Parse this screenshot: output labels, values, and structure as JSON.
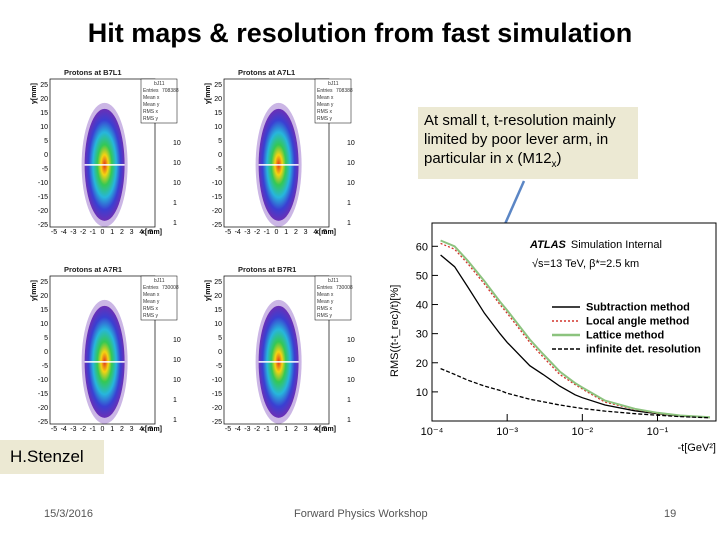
{
  "title": "Hit maps & resolution from fast simulation",
  "callout": {
    "text": "At small t, t-resolution mainly limited by poor lever arm, in particular in x (M12",
    "subscript": "x",
    "close": ")"
  },
  "author": "H.Stenzel",
  "footer": {
    "date": "15/3/2016",
    "event": "Forward Physics Workshop",
    "page": "19"
  },
  "hitmaps": [
    {
      "title": "Protons at B7L1",
      "stat_name": "bJ11",
      "entries": "708388",
      "xlabel": "x[mm]",
      "ylabel": "y[mm]"
    },
    {
      "title": "Protons at A7L1",
      "stat_name": "bJ11",
      "entries": "708388",
      "xlabel": "x[mm]",
      "ylabel": "y[mm]"
    },
    {
      "title": "Protons at A7R1",
      "stat_name": "bJ11",
      "entries": "730008",
      "xlabel": "x[mm]",
      "ylabel": "y[mm]"
    },
    {
      "title": "Protons at B7R1",
      "stat_name": "bJ11",
      "entries": "730008",
      "xlabel": "x[mm]",
      "ylabel": "y[mm]"
    }
  ],
  "hitmap_axes": {
    "x_ticks": [
      "-5",
      "-4",
      "-3",
      "-2",
      "-1",
      "0",
      "1",
      "2",
      "3",
      "4",
      "5"
    ],
    "y_ticks": [
      "25",
      "20",
      "15",
      "10",
      "5",
      "0",
      "-5",
      "-10",
      "-15",
      "-20",
      "-25"
    ],
    "z_ticks": [
      "10",
      "10",
      "10",
      "1",
      "1"
    ]
  },
  "stat_labels": [
    "Entries",
    "Mean x",
    "Mean y",
    "RMS x",
    "RMS y"
  ],
  "colors": {
    "callout_bg": "#ece9d3",
    "subtraction": "#000000",
    "local_angle": "#d2342c",
    "lattice": "#8cc37e",
    "infinite": "#000000",
    "arrow": "#5b86c5"
  },
  "chart_data": {
    "type": "line",
    "title": "ATLAS Simulation Internal",
    "title_bold": "ATLAS",
    "title_italic": "Simulation Internal",
    "subtitle": "√s=13 TeV, β*=2.5 km",
    "ylabel": "RMS((t-t_rec)/t)[%]",
    "xlabel": "-t[GeV²]",
    "xscale": "log",
    "xlim": [
      0.0001,
      0.6
    ],
    "ylim": [
      0,
      68
    ],
    "x_tick_labels": [
      "10⁻⁴",
      "10⁻³",
      "10⁻²",
      "10⁻¹"
    ],
    "x_tick_values": [
      0.0001,
      0.001,
      0.01,
      0.1
    ],
    "y_tick_labels": [
      "10",
      "20",
      "30",
      "40",
      "50",
      "60"
    ],
    "y_tick_values": [
      10,
      20,
      30,
      40,
      50,
      60
    ],
    "legend_position": "right",
    "series": [
      {
        "name": "Subtraction method",
        "style": "solid",
        "color": "#000000",
        "x": [
          0.00013,
          0.0002,
          0.0003,
          0.0005,
          0.0008,
          0.001,
          0.002,
          0.003,
          0.005,
          0.008,
          0.01,
          0.02,
          0.05,
          0.1,
          0.2,
          0.5
        ],
        "y": [
          57,
          53,
          46,
          37,
          30,
          27,
          19,
          16,
          12,
          9,
          8,
          5.5,
          3.5,
          2.5,
          1.7,
          1.2
        ]
      },
      {
        "name": "Local angle method",
        "style": "dotted",
        "color": "#d2342c",
        "x": [
          0.00013,
          0.0002,
          0.0003,
          0.0005,
          0.0008,
          0.001,
          0.002,
          0.003,
          0.005,
          0.008,
          0.01,
          0.02,
          0.05,
          0.1,
          0.2,
          0.5
        ],
        "y": [
          61,
          59,
          54,
          47,
          40,
          37,
          27,
          22,
          16,
          12.5,
          11,
          6.5,
          4,
          2.6,
          1.8,
          1.2
        ]
      },
      {
        "name": "Lattice method",
        "style": "solid",
        "color": "#8cc37e",
        "x": [
          0.00013,
          0.0002,
          0.0003,
          0.0005,
          0.0008,
          0.001,
          0.002,
          0.003,
          0.005,
          0.008,
          0.01,
          0.02,
          0.05,
          0.1,
          0.2,
          0.5
        ],
        "y": [
          62,
          60,
          55,
          48,
          41,
          38,
          28,
          23,
          17,
          13,
          11.5,
          7,
          4.2,
          2.8,
          1.9,
          1.3
        ]
      },
      {
        "name": "infinite det. resolution",
        "style": "dashed",
        "color": "#000000",
        "x": [
          0.00013,
          0.0002,
          0.0003,
          0.0005,
          0.0008,
          0.001,
          0.002,
          0.005,
          0.01,
          0.02,
          0.05,
          0.1,
          0.2,
          0.5
        ],
        "y": [
          18,
          16,
          14,
          12,
          10.5,
          9.5,
          7.5,
          5.5,
          4.3,
          3.4,
          2.5,
          2,
          1.5,
          1.1
        ]
      }
    ]
  }
}
